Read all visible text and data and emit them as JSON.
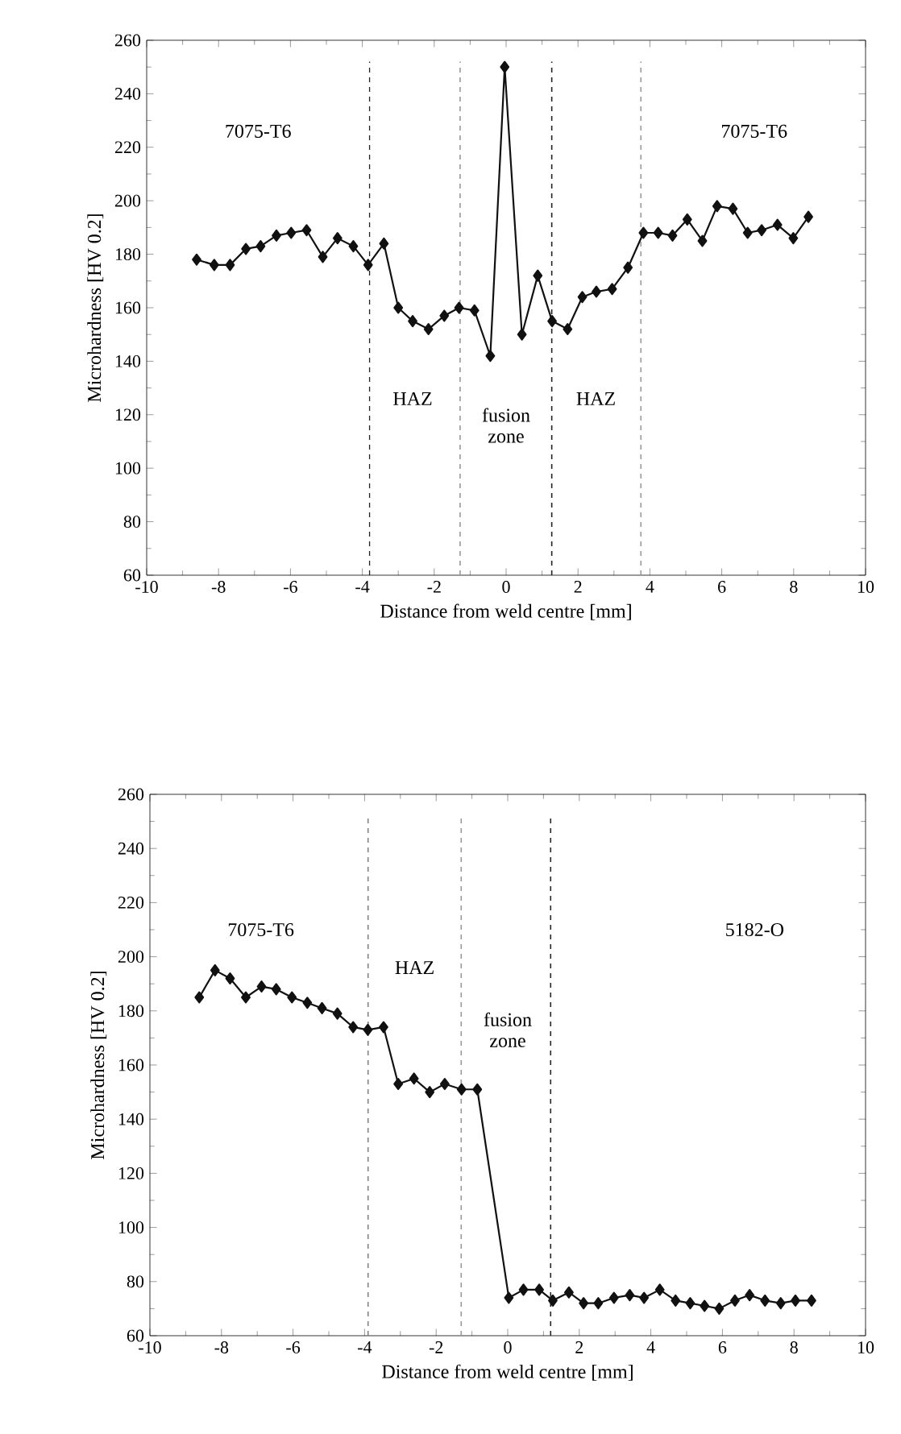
{
  "chart_data": [
    {
      "type": "line",
      "xlabel": "Distance from weld centre [mm]",
      "ylabel": "Microhardness [HV 0.2]",
      "xlim": [
        -10,
        10
      ],
      "ylim": [
        60,
        260
      ],
      "xticks": [
        -10,
        -8,
        -6,
        -4,
        -2,
        0,
        2,
        4,
        6,
        8,
        10
      ],
      "yticks": [
        60,
        80,
        100,
        120,
        140,
        160,
        180,
        200,
        220,
        240,
        260
      ],
      "grid": false,
      "marker": "diamond",
      "line_style": "solid",
      "series": [
        {
          "color": "#111111",
          "x": [
            -8.61,
            -8.12,
            -7.68,
            -7.24,
            -6.83,
            -6.39,
            -5.98,
            -5.55,
            -5.1,
            -4.69,
            -4.25,
            -3.84,
            -3.4,
            -3.0,
            -2.6,
            -2.16,
            -1.72,
            -1.31,
            -0.88,
            -0.44,
            -0.04,
            0.44,
            0.88,
            1.28,
            1.71,
            2.12,
            2.51,
            2.95,
            3.39,
            3.82,
            4.23,
            4.63,
            5.04,
            5.46,
            5.87,
            6.31,
            6.72,
            7.11,
            7.55,
            7.99,
            8.41
          ],
          "values": [
            178,
            176,
            176,
            182,
            183,
            187,
            188,
            189,
            179,
            186,
            183,
            176,
            184,
            160,
            155,
            152,
            157,
            160,
            159,
            142,
            250,
            150,
            172,
            155,
            152,
            164,
            166,
            167,
            175,
            188,
            188,
            187,
            193,
            185,
            198,
            197,
            188,
            189,
            191,
            186,
            194
          ]
        }
      ],
      "ref_lines": [
        {
          "axis": "x",
          "value": -3.8,
          "color": "#222222",
          "line_style": "dashed"
        },
        {
          "axis": "x",
          "value": -1.28,
          "color": "#999999",
          "line_style": "dashed"
        },
        {
          "axis": "x",
          "value": 1.27,
          "color": "#222222",
          "line_style": "dashed"
        },
        {
          "axis": "x",
          "value": 3.75,
          "color": "#999999",
          "line_style": "dashed"
        }
      ],
      "annotations": [
        "7075-T6",
        "HAZ",
        "fusion zone",
        "HAZ",
        "7075-T6"
      ]
    },
    {
      "type": "line",
      "xlabel": "Distance from weld centre [mm]",
      "ylabel": "Microhardness [HV 0.2]",
      "xlim": [
        -10,
        10
      ],
      "ylim": [
        60,
        260
      ],
      "xticks": [
        -10,
        -8,
        -6,
        -4,
        -2,
        0,
        2,
        4,
        6,
        8,
        10
      ],
      "yticks": [
        60,
        80,
        100,
        120,
        140,
        160,
        180,
        200,
        220,
        240,
        260
      ],
      "grid": false,
      "marker": "diamond",
      "line_style": "solid",
      "series": [
        {
          "color": "#111111",
          "x": [
            -8.62,
            -8.18,
            -7.76,
            -7.32,
            -6.88,
            -6.47,
            -6.03,
            -5.6,
            -5.19,
            -4.76,
            -4.32,
            -3.91,
            -3.47,
            -3.06,
            -2.62,
            -2.18,
            -1.76,
            -1.29,
            -0.85,
            0.03,
            0.44,
            0.88,
            1.26,
            1.71,
            2.12,
            2.53,
            2.97,
            3.41,
            3.81,
            4.25,
            4.69,
            5.1,
            5.5,
            5.91,
            6.35,
            6.76,
            7.19,
            7.63,
            8.04,
            8.49
          ],
          "values": [
            185,
            195,
            192,
            185,
            189,
            188,
            185,
            183,
            181,
            179,
            174,
            173,
            174,
            153,
            155,
            150,
            153,
            151,
            151,
            74,
            77,
            77,
            73,
            76,
            72,
            72,
            74,
            75,
            74,
            77,
            73,
            72,
            71,
            70,
            73,
            75,
            73,
            72,
            73,
            73
          ]
        }
      ],
      "ref_lines": [
        {
          "axis": "x",
          "value": -3.9,
          "color": "#777777",
          "line_style": "dashed"
        },
        {
          "axis": "x",
          "value": -1.3,
          "color": "#999999",
          "line_style": "dashed"
        },
        {
          "axis": "x",
          "value": 1.2,
          "color": "#222222",
          "line_style": "dashed"
        }
      ],
      "annotations": [
        "7075-T6",
        "HAZ",
        "fusion zone",
        "5182-O"
      ]
    }
  ]
}
